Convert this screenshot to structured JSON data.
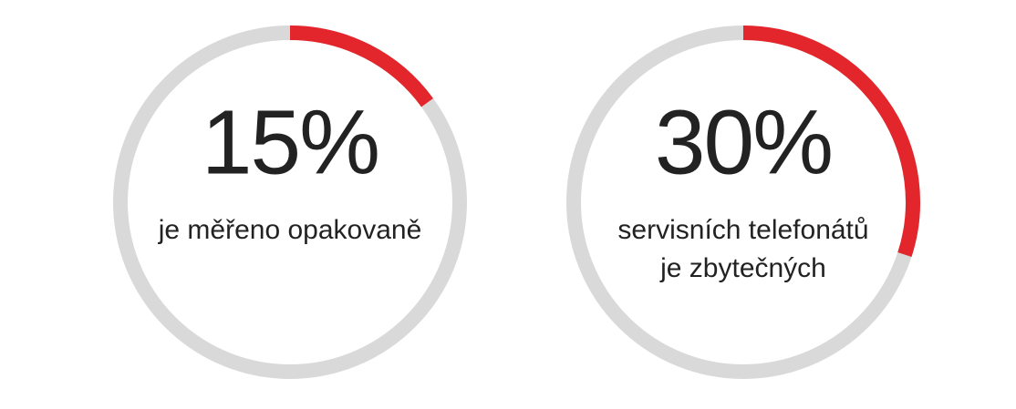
{
  "chart_data": [
    {
      "type": "ring",
      "values": [
        15
      ],
      "value_labels": [
        "15%"
      ],
      "ylim": [
        0,
        100
      ],
      "label_lines": [
        "je měřeno opakovaně"
      ],
      "color": "#e3262b",
      "track_color": "#d9d9d9"
    },
    {
      "type": "ring",
      "values": [
        30
      ],
      "value_labels": [
        "30%"
      ],
      "ylim": [
        0,
        100
      ],
      "label_lines": [
        "servisních telefonátů",
        "je zbytečných"
      ],
      "color": "#e3262b",
      "track_color": "#d9d9d9"
    }
  ]
}
